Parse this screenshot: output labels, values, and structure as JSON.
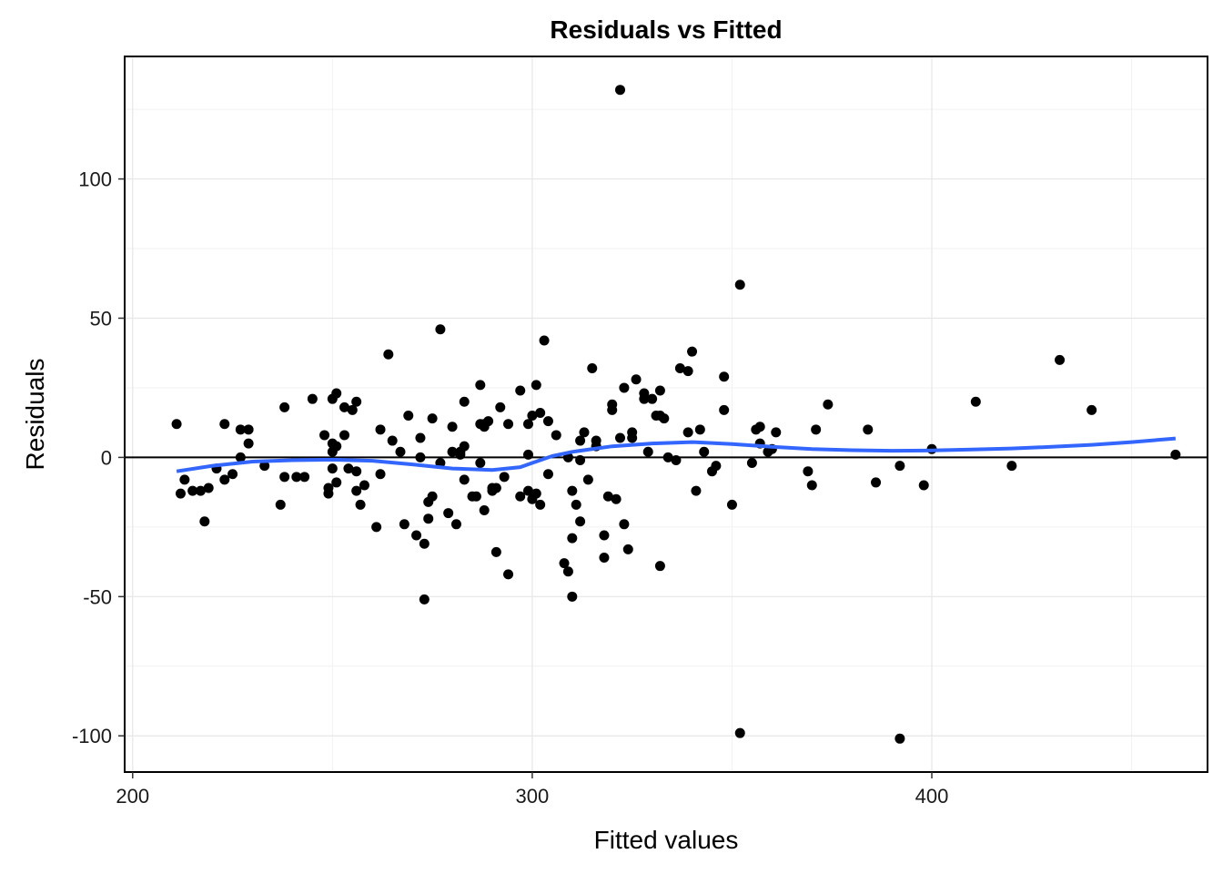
{
  "chart_data": {
    "type": "scatter",
    "title": "Residuals vs Fitted",
    "xlabel": "Fitted values",
    "ylabel": "Residuals",
    "xlim": [
      198,
      469
    ],
    "ylim": [
      -113,
      144
    ],
    "x_ticks": [
      200,
      300,
      400
    ],
    "x_tick_labels": [
      "200",
      "300",
      "400"
    ],
    "y_ticks": [
      -100,
      -50,
      0,
      50,
      100
    ],
    "y_tick_labels": [
      "-100",
      "-50",
      "0",
      "50",
      "100"
    ],
    "grid": true,
    "reference_line_y": 0,
    "point_color": "#000000",
    "smooth_color": "#3366FF",
    "points": [
      [
        211,
        12
      ],
      [
        212,
        -13
      ],
      [
        213,
        -8
      ],
      [
        215,
        -12
      ],
      [
        217,
        -12
      ],
      [
        218,
        -23
      ],
      [
        219,
        -11
      ],
      [
        221,
        -4
      ],
      [
        223,
        -8
      ],
      [
        223,
        12
      ],
      [
        225,
        -6
      ],
      [
        227,
        0
      ],
      [
        227,
        10
      ],
      [
        229,
        10
      ],
      [
        229,
        5
      ],
      [
        233,
        -3
      ],
      [
        237,
        -17
      ],
      [
        238,
        -7
      ],
      [
        238,
        18
      ],
      [
        241,
        -7
      ],
      [
        243,
        -7
      ],
      [
        245,
        21
      ],
      [
        248,
        8
      ],
      [
        249,
        -11
      ],
      [
        249,
        -13
      ],
      [
        250,
        -4
      ],
      [
        250,
        5
      ],
      [
        250,
        2
      ],
      [
        250,
        21
      ],
      [
        251,
        23
      ],
      [
        251,
        4
      ],
      [
        251,
        -9
      ],
      [
        253,
        18
      ],
      [
        253,
        8
      ],
      [
        254,
        -4
      ],
      [
        255,
        17
      ],
      [
        256,
        20
      ],
      [
        256,
        -12
      ],
      [
        256,
        -5
      ],
      [
        257,
        -17
      ],
      [
        258,
        -10
      ],
      [
        261,
        -25
      ],
      [
        262,
        -6
      ],
      [
        262,
        10
      ],
      [
        264,
        37
      ],
      [
        265,
        6
      ],
      [
        267,
        2
      ],
      [
        268,
        -24
      ],
      [
        269,
        15
      ],
      [
        271,
        -28
      ],
      [
        272,
        0
      ],
      [
        272,
        7
      ],
      [
        273,
        -31
      ],
      [
        273,
        -51
      ],
      [
        274,
        -16
      ],
      [
        274,
        -22
      ],
      [
        275,
        -14
      ],
      [
        275,
        14
      ],
      [
        277,
        46
      ],
      [
        277,
        -2
      ],
      [
        279,
        -20
      ],
      [
        280,
        11
      ],
      [
        280,
        2
      ],
      [
        281,
        -24
      ],
      [
        282,
        2
      ],
      [
        282,
        1
      ],
      [
        283,
        20
      ],
      [
        283,
        -8
      ],
      [
        283,
        4
      ],
      [
        285,
        -14
      ],
      [
        286,
        -14
      ],
      [
        287,
        26
      ],
      [
        287,
        -2
      ],
      [
        287,
        12
      ],
      [
        288,
        -19
      ],
      [
        288,
        11
      ],
      [
        288,
        12
      ],
      [
        289,
        13
      ],
      [
        290,
        -11
      ],
      [
        290,
        -12
      ],
      [
        291,
        -34
      ],
      [
        291,
        -11
      ],
      [
        292,
        18
      ],
      [
        293,
        -7
      ],
      [
        294,
        -42
      ],
      [
        294,
        12
      ],
      [
        297,
        24
      ],
      [
        297,
        -14
      ],
      [
        299,
        -12
      ],
      [
        299,
        1
      ],
      [
        299,
        12
      ],
      [
        300,
        15
      ],
      [
        300,
        -15
      ],
      [
        301,
        26
      ],
      [
        301,
        -13
      ],
      [
        302,
        16
      ],
      [
        302,
        -17
      ],
      [
        303,
        42
      ],
      [
        304,
        13
      ],
      [
        304,
        -6
      ],
      [
        306,
        8
      ],
      [
        308,
        -38
      ],
      [
        309,
        0
      ],
      [
        309,
        -41
      ],
      [
        310,
        -29
      ],
      [
        310,
        -50
      ],
      [
        310,
        -12
      ],
      [
        311,
        -17
      ],
      [
        312,
        -23
      ],
      [
        312,
        -1
      ],
      [
        312,
        6
      ],
      [
        313,
        9
      ],
      [
        314,
        -8
      ],
      [
        315,
        32
      ],
      [
        316,
        4
      ],
      [
        316,
        6
      ],
      [
        318,
        -36
      ],
      [
        318,
        -28
      ],
      [
        319,
        -14
      ],
      [
        320,
        17
      ],
      [
        320,
        19
      ],
      [
        321,
        -15
      ],
      [
        322,
        132
      ],
      [
        322,
        7
      ],
      [
        323,
        -24
      ],
      [
        323,
        25
      ],
      [
        324,
        -33
      ],
      [
        325,
        7
      ],
      [
        325,
        9
      ],
      [
        326,
        28
      ],
      [
        328,
        23
      ],
      [
        328,
        21
      ],
      [
        329,
        2
      ],
      [
        330,
        21
      ],
      [
        331,
        15
      ],
      [
        332,
        24
      ],
      [
        332,
        15
      ],
      [
        332,
        -39
      ],
      [
        333,
        14
      ],
      [
        334,
        0
      ],
      [
        336,
        -1
      ],
      [
        337,
        32
      ],
      [
        339,
        9
      ],
      [
        339,
        31
      ],
      [
        340,
        38
      ],
      [
        341,
        -12
      ],
      [
        342,
        10
      ],
      [
        343,
        2
      ],
      [
        345,
        -5
      ],
      [
        346,
        -3
      ],
      [
        348,
        29
      ],
      [
        348,
        17
      ],
      [
        350,
        -17
      ],
      [
        352,
        62
      ],
      [
        352,
        -99
      ],
      [
        355,
        -2
      ],
      [
        356,
        10
      ],
      [
        357,
        11
      ],
      [
        357,
        5
      ],
      [
        359,
        2
      ],
      [
        360,
        3
      ],
      [
        361,
        9
      ],
      [
        369,
        -5
      ],
      [
        370,
        -10
      ],
      [
        371,
        10
      ],
      [
        374,
        19
      ],
      [
        384,
        10
      ],
      [
        386,
        -9
      ],
      [
        392,
        -3
      ],
      [
        392,
        -101
      ],
      [
        398,
        -10
      ],
      [
        400,
        3
      ],
      [
        411,
        20
      ],
      [
        420,
        -3
      ],
      [
        432,
        35
      ],
      [
        440,
        17
      ],
      [
        461,
        1
      ]
    ],
    "smooth": [
      [
        211,
        -5
      ],
      [
        220,
        -3
      ],
      [
        230,
        -1.5
      ],
      [
        240,
        -1
      ],
      [
        250,
        -0.8
      ],
      [
        260,
        -1.2
      ],
      [
        270,
        -2.5
      ],
      [
        280,
        -4
      ],
      [
        290,
        -4.5
      ],
      [
        297,
        -3.5
      ],
      [
        300,
        -2
      ],
      [
        305,
        0.5
      ],
      [
        310,
        2
      ],
      [
        320,
        4
      ],
      [
        330,
        5
      ],
      [
        340,
        5.5
      ],
      [
        350,
        4.8
      ],
      [
        360,
        3.8
      ],
      [
        370,
        3
      ],
      [
        380,
        2.6
      ],
      [
        390,
        2.4
      ],
      [
        400,
        2.5
      ],
      [
        410,
        2.8
      ],
      [
        420,
        3.2
      ],
      [
        430,
        3.8
      ],
      [
        440,
        4.5
      ],
      [
        450,
        5.5
      ],
      [
        461,
        6.8
      ]
    ]
  }
}
